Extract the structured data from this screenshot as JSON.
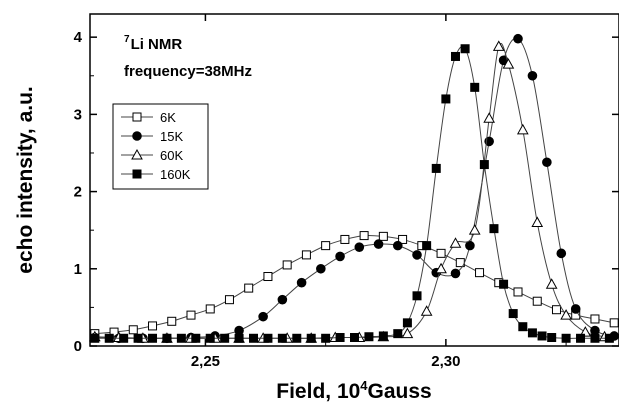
{
  "chart_data": {
    "type": "scatter",
    "title": "",
    "xlabel": "Field, 10",
    "xlabel_sup": "4",
    "xlabel_suffix": "Gauss",
    "ylabel": "echo intensity, a.u.",
    "xlim": [
      2.226,
      2.336
    ],
    "ylim": [
      0,
      4.3
    ],
    "x_ticks": [
      2.25,
      2.3
    ],
    "x_tick_labels": [
      "2,25",
      "2,30"
    ],
    "y_ticks": [
      0,
      1,
      2,
      3,
      4
    ],
    "y_tick_labels": [
      "0",
      "1",
      "2",
      "3",
      "4"
    ],
    "grid": false,
    "legend_position": "upper-left",
    "annotation": {
      "line1_sup": "7",
      "line1": "Li NMR",
      "line2": "frequency=38MHz"
    },
    "series": [
      {
        "name": "6K",
        "marker": "square-open",
        "x": [
          2.227,
          2.231,
          2.235,
          2.239,
          2.243,
          2.247,
          2.251,
          2.255,
          2.259,
          2.263,
          2.267,
          2.271,
          2.275,
          2.279,
          2.283,
          2.287,
          2.291,
          2.295,
          2.299,
          2.303,
          2.307,
          2.311,
          2.315,
          2.319,
          2.323,
          2.327,
          2.331,
          2.335
        ],
        "y": [
          0.16,
          0.18,
          0.21,
          0.26,
          0.32,
          0.4,
          0.48,
          0.6,
          0.75,
          0.9,
          1.05,
          1.18,
          1.3,
          1.38,
          1.43,
          1.42,
          1.38,
          1.3,
          1.2,
          1.08,
          0.95,
          0.82,
          0.7,
          0.58,
          0.47,
          0.4,
          0.35,
          0.3
        ]
      },
      {
        "name": "15K",
        "marker": "circle-filled",
        "x": [
          2.227,
          2.232,
          2.237,
          2.242,
          2.247,
          2.252,
          2.257,
          2.262,
          2.266,
          2.27,
          2.274,
          2.278,
          2.282,
          2.286,
          2.29,
          2.294,
          2.298,
          2.302,
          2.305,
          2.309,
          2.312,
          2.315,
          2.318,
          2.321,
          2.324,
          2.327,
          2.331,
          2.335
        ],
        "y": [
          0.11,
          0.1,
          0.1,
          0.1,
          0.11,
          0.13,
          0.2,
          0.38,
          0.6,
          0.82,
          1.0,
          1.16,
          1.28,
          1.32,
          1.3,
          1.18,
          0.95,
          0.94,
          1.3,
          2.65,
          3.7,
          3.98,
          3.5,
          2.38,
          1.2,
          0.48,
          0.2,
          0.13
        ]
      },
      {
        "name": "60K",
        "marker": "triangle-open",
        "x": [
          2.227,
          2.232,
          2.237,
          2.242,
          2.247,
          2.252,
          2.257,
          2.262,
          2.267,
          2.272,
          2.277,
          2.282,
          2.287,
          2.292,
          2.296,
          2.299,
          2.302,
          2.306,
          2.309,
          2.311,
          2.313,
          2.316,
          2.319,
          2.322,
          2.325,
          2.329,
          2.333
        ],
        "y": [
          0.12,
          0.11,
          0.1,
          0.1,
          0.1,
          0.1,
          0.1,
          0.1,
          0.1,
          0.1,
          0.11,
          0.11,
          0.12,
          0.16,
          0.45,
          1.0,
          1.33,
          1.5,
          2.95,
          3.88,
          3.65,
          2.8,
          1.6,
          0.8,
          0.4,
          0.18,
          0.12
        ]
      },
      {
        "name": "160K",
        "marker": "square-filled",
        "x": [
          2.227,
          2.23,
          2.233,
          2.236,
          2.239,
          2.242,
          2.245,
          2.248,
          2.251,
          2.254,
          2.257,
          2.26,
          2.263,
          2.266,
          2.269,
          2.272,
          2.275,
          2.278,
          2.281,
          2.284,
          2.287,
          2.29,
          2.292,
          2.294,
          2.296,
          2.298,
          2.3,
          2.302,
          2.304,
          2.306,
          2.308,
          2.31,
          2.312,
          2.314,
          2.316,
          2.318,
          2.32,
          2.322,
          2.325,
          2.328,
          2.331,
          2.334
        ],
        "y": [
          0.1,
          0.1,
          0.1,
          0.1,
          0.1,
          0.1,
          0.1,
          0.1,
          0.1,
          0.1,
          0.1,
          0.1,
          0.1,
          0.1,
          0.1,
          0.1,
          0.1,
          0.11,
          0.11,
          0.12,
          0.13,
          0.16,
          0.3,
          0.65,
          1.3,
          2.3,
          3.2,
          3.75,
          3.85,
          3.35,
          2.35,
          1.52,
          0.8,
          0.42,
          0.25,
          0.17,
          0.13,
          0.11,
          0.1,
          0.1,
          0.1,
          0.1
        ]
      }
    ]
  }
}
